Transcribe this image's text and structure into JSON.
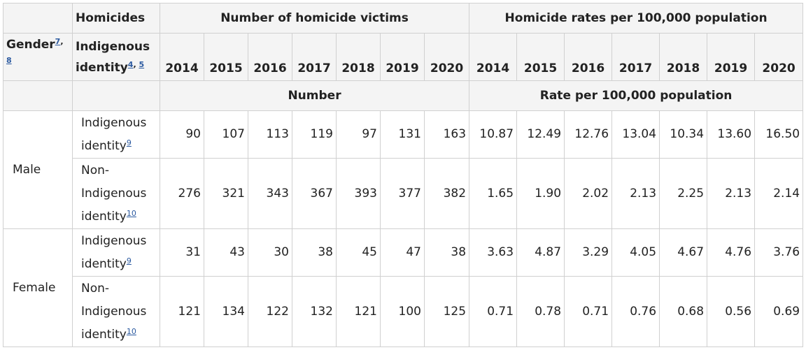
{
  "header": {
    "homicides": "Homicides",
    "victims_group": "Number of homicide victims",
    "rates_group": "Homicide rates per 100,000 population",
    "gender": "Gender",
    "gender_notes": [
      "7",
      "8"
    ],
    "identity": "Indigenous identity",
    "identity_notes": [
      "4",
      "5"
    ],
    "years": [
      "2014",
      "2015",
      "2016",
      "2017",
      "2018",
      "2019",
      "2020"
    ],
    "unit_number": "Number",
    "unit_rate": "Rate per 100,000 population"
  },
  "rows": [
    {
      "gender": "Male",
      "identity": "Indigenous identity",
      "note": "9",
      "numbers": [
        "90",
        "107",
        "113",
        "119",
        "97",
        "131",
        "163"
      ],
      "rates": [
        "10.87",
        "12.49",
        "12.76",
        "13.04",
        "10.34",
        "13.60",
        "16.50"
      ]
    },
    {
      "gender": "Male",
      "identity": "Non-Indigenous identity",
      "note": "10",
      "numbers": [
        "276",
        "321",
        "343",
        "367",
        "393",
        "377",
        "382"
      ],
      "rates": [
        "1.65",
        "1.90",
        "2.02",
        "2.13",
        "2.25",
        "2.13",
        "2.14"
      ]
    },
    {
      "gender": "Female",
      "identity": "Indigenous identity",
      "note": "9",
      "numbers": [
        "31",
        "43",
        "30",
        "38",
        "45",
        "47",
        "38"
      ],
      "rates": [
        "3.63",
        "4.87",
        "3.29",
        "4.05",
        "4.67",
        "4.76",
        "3.76"
      ]
    },
    {
      "gender": "Female",
      "identity": "Non-Indigenous identity",
      "note": "10",
      "numbers": [
        "121",
        "134",
        "122",
        "132",
        "121",
        "100",
        "125"
      ],
      "rates": [
        "0.71",
        "0.78",
        "0.71",
        "0.76",
        "0.68",
        "0.56",
        "0.69"
      ]
    }
  ]
}
